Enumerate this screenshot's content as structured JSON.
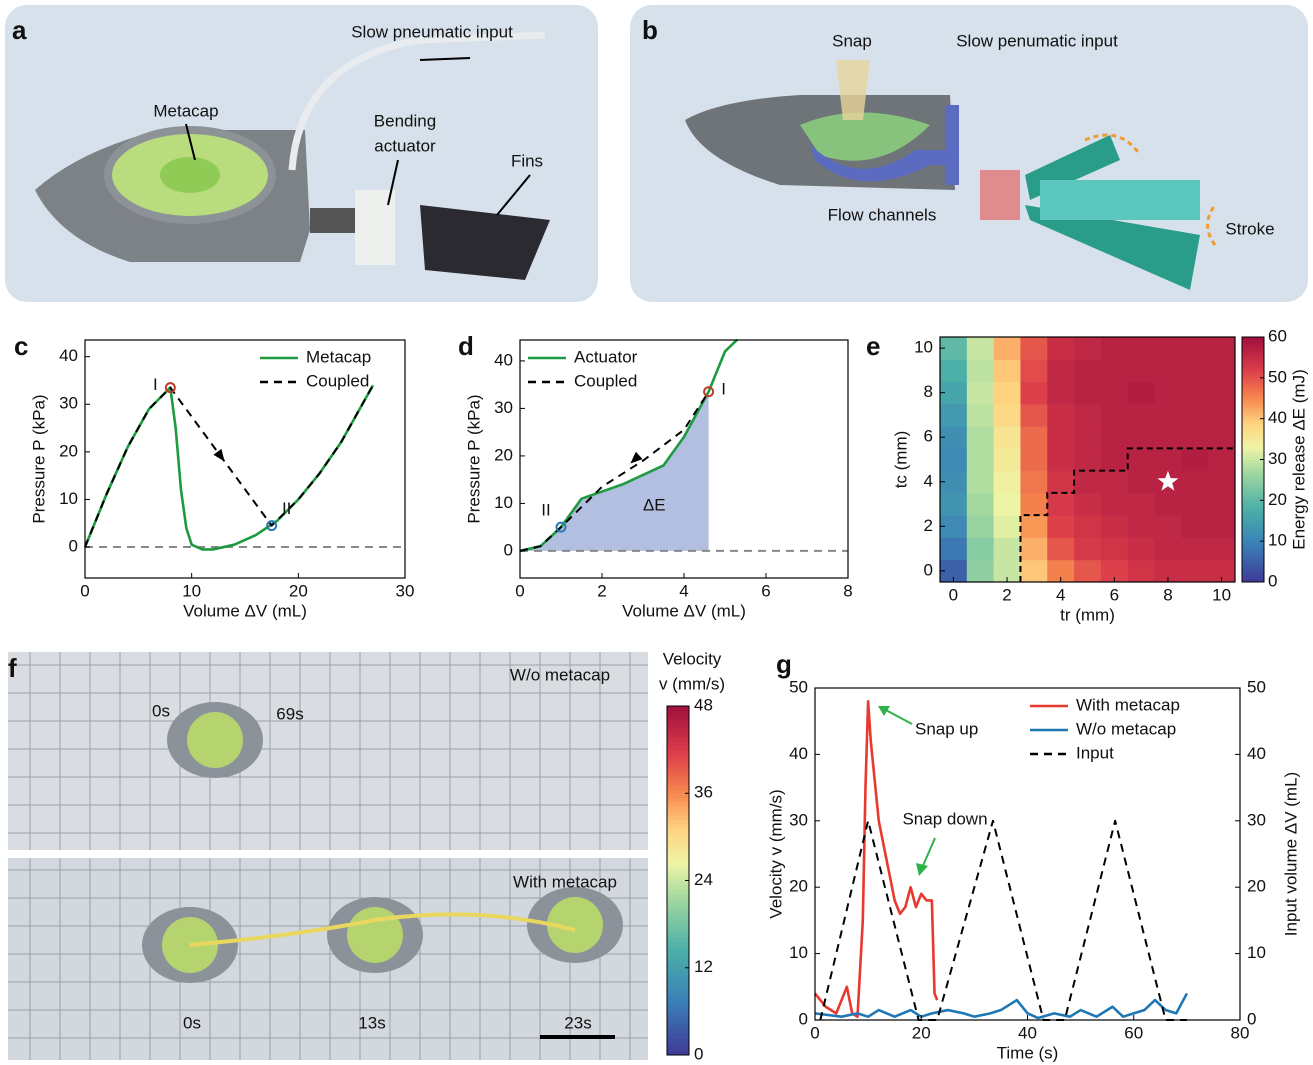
{
  "panel_a": {
    "letter": "a",
    "labels": {
      "input": "Slow pneumatic input",
      "metacap": "Metacap",
      "actuator": [
        "Bending",
        "actuator"
      ],
      "fins": "Fins"
    }
  },
  "panel_b": {
    "letter": "b",
    "labels": {
      "snap": "Snap",
      "input": "Slow penumatic input",
      "channels": "Flow channels",
      "stroke": "Stroke"
    }
  },
  "panel_f": {
    "letter": "f",
    "top": {
      "title": "W/o metacap",
      "times": [
        "0s",
        "69s"
      ]
    },
    "bottom": {
      "title": "With metacap",
      "times": [
        "0s",
        "13s",
        "23s"
      ]
    },
    "colorbar": {
      "label": [
        "Velocity",
        "v (mm/s)"
      ],
      "lim": [
        0,
        48
      ],
      "ticks": [
        0,
        12,
        24,
        36,
        48
      ]
    }
  },
  "chart_data": [
    {
      "letter": "c",
      "type": "line",
      "xlabel": "Volume ΔV (mL)",
      "ylabel": "Pressure P (kPa)",
      "xlim": [
        0,
        30
      ],
      "ylim": [
        -6.5,
        43.5
      ],
      "xticks": [
        0,
        10,
        20,
        30
      ],
      "yticks": [
        0,
        10,
        20,
        30,
        40
      ],
      "reference_line": 0,
      "legend": "upper right",
      "series": [
        {
          "name": "Metacap",
          "color": "#1e9a40",
          "x": [
            0,
            2,
            4,
            6,
            8,
            8.5,
            9,
            9.5,
            10,
            11,
            12,
            14,
            16,
            18,
            20,
            22,
            24,
            27
          ],
          "values": [
            0,
            11,
            21,
            29,
            33.5,
            25,
            12,
            4,
            0.5,
            -0.5,
            -0.5,
            0.5,
            2.5,
            5.5,
            10,
            15.5,
            22,
            34
          ]
        },
        {
          "name": "Coupled",
          "color": "#000000",
          "dash": true,
          "x": [
            0,
            2,
            4,
            6,
            8,
            17.5,
            20,
            22,
            24,
            27
          ],
          "values": [
            0,
            11,
            21,
            29,
            33.5,
            4.5,
            10,
            15.5,
            22,
            34
          ]
        }
      ],
      "points": [
        {
          "label": "I",
          "x": 8,
          "y": 33.5,
          "color": "#c0392b"
        },
        {
          "label": "II",
          "x": 17.5,
          "y": 4.5,
          "color": "#2a7ab8"
        }
      ]
    },
    {
      "letter": "d",
      "type": "line",
      "xlabel": "Volume ΔV (mL)",
      "ylabel": "Pressure P (kPa)",
      "xlim": [
        0,
        8
      ],
      "ylim": [
        -5.7,
        44.4
      ],
      "xticks": [
        0,
        2,
        4,
        6,
        8
      ],
      "yticks": [
        0,
        10,
        20,
        30,
        40
      ],
      "reference_line": 0,
      "legend": "upper left",
      "shade": {
        "label": "ΔE",
        "to_x": 4.6,
        "color": "#b3bfe0"
      },
      "series": [
        {
          "name": "Actuator",
          "color": "#1e9a40",
          "x": [
            0,
            0.5,
            1,
            1.5,
            2,
            2.5,
            3,
            3.5,
            4,
            4.6,
            5,
            5.3
          ],
          "values": [
            0,
            1,
            5,
            11,
            12.5,
            14,
            16,
            18,
            24,
            33.5,
            42,
            44.5
          ]
        },
        {
          "name": "Coupled",
          "color": "#000000",
          "dash": true,
          "x": [
            0,
            0.5,
            1,
            2,
            3,
            4,
            4.6
          ],
          "values": [
            0,
            1,
            5,
            13.5,
            19,
            25.5,
            33.5
          ]
        }
      ],
      "points": [
        {
          "label": "I",
          "x": 4.6,
          "y": 33.5,
          "color": "#c0392b"
        },
        {
          "label": "II",
          "x": 1,
          "y": 5,
          "color": "#2a7ab8"
        }
      ]
    },
    {
      "letter": "e",
      "type": "heatmap",
      "xlabel": "tr (mm)",
      "ylabel": "tc (mm)",
      "colorbar_label": "Energy release ΔE (mJ)",
      "xlim": [
        -0.5,
        10.5
      ],
      "ylim": [
        -0.5,
        10.5
      ],
      "xticks": [
        0,
        2,
        4,
        6,
        8,
        10
      ],
      "yticks": [
        0,
        2,
        4,
        6,
        8,
        10
      ],
      "clim": [
        0,
        60
      ],
      "cticks": [
        0,
        10,
        20,
        30,
        40,
        50,
        60
      ],
      "x": [
        0,
        1,
        2,
        3,
        4,
        5,
        6,
        7,
        8,
        9,
        10
      ],
      "y": [
        0,
        1,
        2,
        3,
        4,
        5,
        6,
        7,
        8,
        9,
        10
      ],
      "z": [
        [
          5,
          25,
          30,
          40,
          46,
          50,
          52,
          54,
          55,
          55,
          55
        ],
        [
          8,
          24,
          30,
          42,
          50,
          53,
          54,
          55,
          56,
          56,
          56
        ],
        [
          11,
          26,
          32,
          44,
          52,
          54,
          55,
          56,
          56,
          57,
          57
        ],
        [
          13,
          27,
          33,
          46,
          53,
          55,
          56,
          56,
          57,
          57,
          57
        ],
        [
          12,
          28,
          34,
          47,
          54,
          56,
          56,
          57,
          57,
          57,
          57
        ],
        [
          11,
          28,
          35,
          48,
          55,
          56,
          57,
          57,
          57,
          58,
          57
        ],
        [
          12,
          28,
          36,
          48,
          55,
          56,
          57,
          57,
          57,
          57,
          57
        ],
        [
          14,
          29,
          38,
          50,
          55,
          56,
          57,
          57,
          57,
          57,
          57
        ],
        [
          16,
          30,
          39,
          52,
          56,
          57,
          57,
          58,
          57,
          57,
          57
        ],
        [
          18,
          29,
          40,
          51,
          56,
          57,
          57,
          57,
          57,
          57,
          57
        ],
        [
          20,
          30,
          42,
          50,
          55,
          56,
          57,
          57,
          57,
          57,
          57
        ]
      ],
      "boundary": {
        "x": [
          2.5,
          2.5,
          3.5,
          3.5,
          4.5,
          4.5,
          6.5,
          6.5,
          10.5
        ],
        "y": [
          -0.5,
          2.5,
          2.5,
          3.5,
          3.5,
          4.5,
          4.5,
          5.5,
          5.5
        ]
      },
      "star": [
        8,
        4
      ]
    },
    {
      "letter": "g",
      "type": "line",
      "xlabel": "Time (s)",
      "ylabel": "Velocity v  (mm/s)",
      "y2label": "Input volume ΔV (mL)",
      "ylabel_color": "#1f77b4",
      "xlim": [
        0,
        80
      ],
      "ylim": [
        0,
        50
      ],
      "y2lim": [
        0,
        50
      ],
      "xticks": [
        0,
        20,
        40,
        60,
        80
      ],
      "yticks": [
        0,
        10,
        20,
        30,
        40,
        50
      ],
      "y2ticks": [
        0,
        10,
        20,
        30,
        40,
        50
      ],
      "legend": "upper right",
      "annotations": {
        "snap_up": "Snap up",
        "snap_down": "Snap down",
        "color": "#2db34a"
      },
      "series": [
        {
          "name": "With metacap",
          "color": "#e8392f",
          "x": [
            0,
            2,
            4,
            6,
            7,
            8,
            9,
            9.5,
            10,
            10.5,
            11,
            12,
            13,
            14,
            15,
            16,
            17,
            18,
            19,
            20,
            21,
            22,
            22.5,
            23
          ],
          "values": [
            4,
            2,
            1,
            5,
            1,
            0.5,
            15,
            35,
            48,
            42,
            38,
            30,
            26,
            22,
            18,
            16,
            17,
            20,
            17,
            19,
            18,
            18,
            4,
            3
          ]
        },
        {
          "name": "W/o metacap",
          "color": "#1f77b4",
          "x": [
            0,
            5,
            8,
            10,
            12,
            15,
            18,
            20,
            22,
            25,
            28,
            30,
            33,
            35,
            38,
            40,
            42,
            45,
            48,
            50,
            53,
            56,
            58,
            60,
            62,
            64,
            66,
            68,
            70
          ],
          "values": [
            1,
            0.5,
            1,
            0.5,
            1.5,
            0.5,
            1.5,
            0.5,
            1,
            1.5,
            1,
            0.5,
            1,
            1.5,
            3,
            1,
            0.3,
            1,
            0.5,
            1.5,
            0.5,
            2,
            0.5,
            1,
            1.5,
            3,
            1.5,
            1,
            4
          ]
        },
        {
          "name": "Input",
          "color": "#000000",
          "dash": true,
          "axis": "y2",
          "x": [
            1,
            10,
            19.5,
            23,
            33.5,
            43,
            47,
            56.5,
            66,
            70
          ],
          "values": [
            0,
            30,
            0,
            0,
            30,
            0,
            0,
            30,
            0,
            0
          ]
        }
      ]
    }
  ]
}
